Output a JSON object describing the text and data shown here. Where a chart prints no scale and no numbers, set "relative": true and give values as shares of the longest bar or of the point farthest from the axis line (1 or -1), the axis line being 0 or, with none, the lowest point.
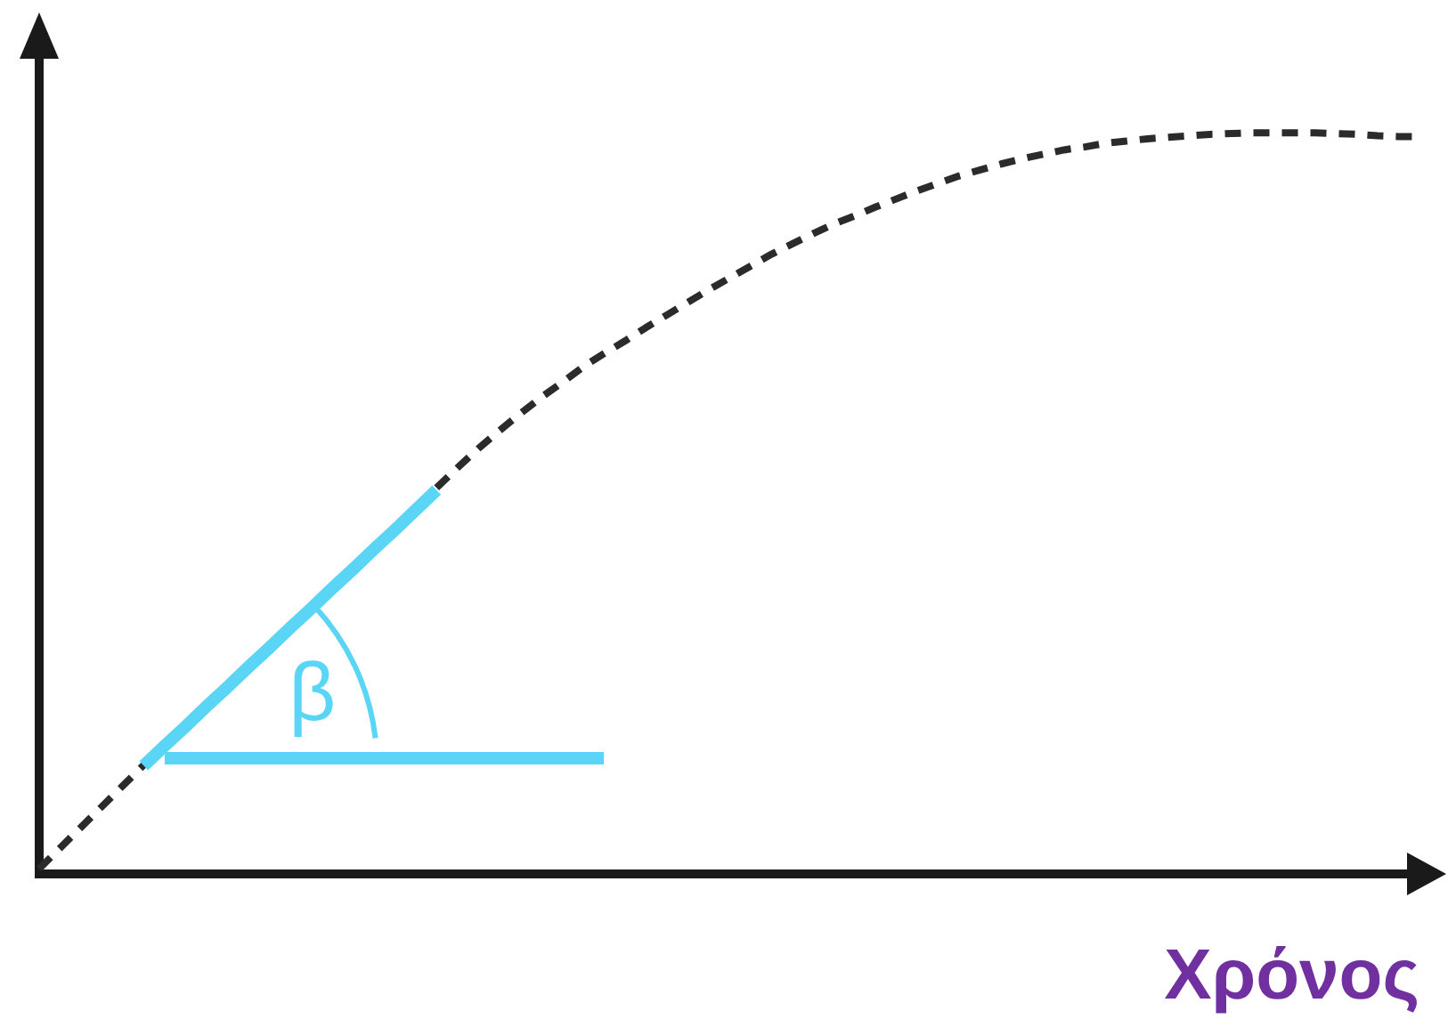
{
  "chart_data": {
    "type": "line",
    "xlabel": "Χρόνος",
    "relative": true,
    "grid": false,
    "legend": false,
    "marker": "none",
    "annotations": [
      "β"
    ],
    "categories": [
      null,
      null,
      null,
      null,
      null,
      null,
      null,
      null,
      null,
      null,
      null,
      null,
      null,
      null,
      null,
      null,
      null,
      null,
      null,
      null,
      null,
      null,
      null,
      null,
      null,
      null,
      null,
      null,
      null,
      null,
      null,
      null,
      null,
      null,
      null,
      null,
      null,
      null,
      null,
      null,
      null,
      null,
      null,
      null,
      null,
      null,
      null,
      null,
      null,
      null,
      null,
      null,
      null,
      null,
      null,
      null,
      null,
      null,
      null,
      null,
      null,
      null,
      null,
      null,
      null,
      null,
      null
    ],
    "series": [
      {
        "color": "#2b2b2b",
        "line_style": "dashed",
        "values": [
          0.007,
          0.035,
          0.063,
          0.091,
          0.119,
          0.147,
          null,
          null,
          null,
          null,
          null,
          null,
          null,
          null,
          null,
          null,
          null,
          null,
          null,
          0.521,
          0.548,
          0.574,
          0.598,
          0.621,
          0.643,
          0.663,
          0.684,
          0.702,
          0.719,
          0.737,
          0.754,
          0.771,
          0.788,
          0.804,
          0.82,
          0.836,
          0.85,
          0.864,
          0.877,
          0.888,
          0.9,
          0.911,
          0.922,
          0.932,
          0.942,
          0.95,
          0.958,
          0.965,
          0.971,
          0.977,
          0.981,
          0.986,
          0.989,
          0.992,
          0.994,
          0.996,
          0.998,
          0.999,
          1,
          1,
          1,
          1,
          0.999,
          0.998,
          0.996,
          0.995,
          0.995
        ]
      },
      {
        "color": "#5ad5f5",
        "line_style": "solid",
        "values": [
          null,
          null,
          null,
          null,
          null,
          0.146,
          0.173,
          0.199,
          0.226,
          0.252,
          0.279,
          0.305,
          0.332,
          0.358,
          0.385,
          0.411,
          0.438,
          0.464,
          0.491,
          0.518,
          null,
          null,
          null,
          null,
          null,
          null,
          null,
          null,
          null,
          null,
          null,
          null,
          null,
          null,
          null,
          null,
          null,
          null,
          null,
          null,
          null,
          null,
          null,
          null,
          null,
          null,
          null,
          null,
          null,
          null,
          null,
          null,
          null,
          null,
          null,
          null,
          null,
          null,
          null,
          null,
          null,
          null,
          null,
          null,
          null,
          null,
          null
        ]
      },
      {
        "color": "#5ad5f5",
        "line_style": "solid",
        "values": [
          null,
          null,
          null,
          null,
          null,
          null,
          0.156,
          0.156,
          0.156,
          0.156,
          0.156,
          0.156,
          0.156,
          0.156,
          0.156,
          0.156,
          0.156,
          0.156,
          0.156,
          0.156,
          0.156,
          0.156,
          0.156,
          0.156,
          0.156,
          0.156,
          0.156,
          0.156,
          null,
          null,
          null,
          null,
          null,
          null,
          null,
          null,
          null,
          null,
          null,
          null,
          null,
          null,
          null,
          null,
          null,
          null,
          null,
          null,
          null,
          null,
          null,
          null,
          null,
          null,
          null,
          null,
          null,
          null,
          null,
          null,
          null,
          null,
          null,
          null,
          null,
          null,
          null
        ]
      }
    ]
  }
}
